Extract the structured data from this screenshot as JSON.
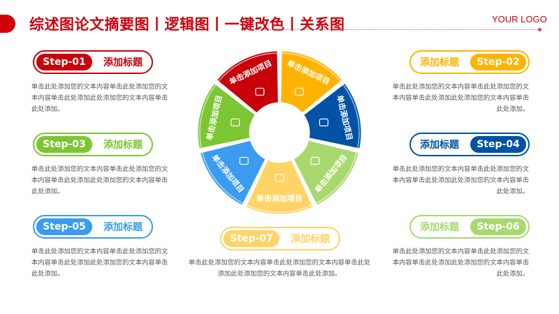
{
  "header": {
    "title": "综述图论文摘要图丨逻辑图丨一键改色丨关系图",
    "logo": "YOUR LOGO",
    "accent": "#D0000B"
  },
  "steps": [
    {
      "step": "Step-01",
      "title": "添加标题",
      "desc": "单击此处添加您的文本内容单击此处添加您的文本内容单击此处添加此处添加您的文本内容单击此处添加。",
      "color": "#C8000A"
    },
    {
      "step": "Step-02",
      "title": "添加标题",
      "desc": "单击此处添加您的文本内容单击此处添加您的文本内容单击此处添加此处添加您的文本内容单击此处添加。",
      "color": "#FFB300"
    },
    {
      "step": "Step-03",
      "title": "添加标题",
      "desc": "单击此处添加您的文本内容单击此处添加您的文本内容单击此处添加此处添加您的文本内容单击此处添加。",
      "color": "#7CC634"
    },
    {
      "step": "Step-04",
      "title": "添加标题",
      "desc": "单击此处添加您的文本内容单击此处添加您的文本内容单击此处添加此处添加您的文本内容单击此处添加。",
      "color": "#0052A5"
    },
    {
      "step": "Step-05",
      "title": "添加标题",
      "desc": "单击此处添加您的文本内容单击此处添加您的文本内容单击此处添加此处添加您的文本内容单击此处添加。",
      "color": "#3A9BEF"
    },
    {
      "step": "Step-06",
      "title": "添加标题",
      "desc": "单击此处添加您的文本内容单击此处添加您的文本内容单击此处添加此处添加您的文本内容单击此处添加。",
      "color": "#A8D86E"
    },
    {
      "step": "Step-07",
      "title": "添加标题",
      "desc": "单击此处添加您的文本内容单击此处添加您的文本内容单击此处添加此处添加您的文本内容单击此处添加。",
      "color": "#FFD466"
    }
  ],
  "wheel": {
    "segments": [
      {
        "label": "单击添加项目",
        "color": "#FFB300",
        "icon": "person-icon"
      },
      {
        "label": "单击添加项目",
        "color": "#0052A5",
        "icon": "devices-icon"
      },
      {
        "label": "单击添加项目",
        "color": "#A8D86E",
        "icon": "chat-icon"
      },
      {
        "label": "单击添加项目",
        "color": "#FFD466",
        "icon": "chat-icon"
      },
      {
        "label": "单击添加项目",
        "color": "#3A9BEF",
        "icon": "document-icon"
      },
      {
        "label": "单击添加项目",
        "color": "#7CC634",
        "icon": "presentation-icon"
      },
      {
        "label": "单击添加项目",
        "color": "#C8000A",
        "icon": "team-icon"
      }
    ]
  }
}
